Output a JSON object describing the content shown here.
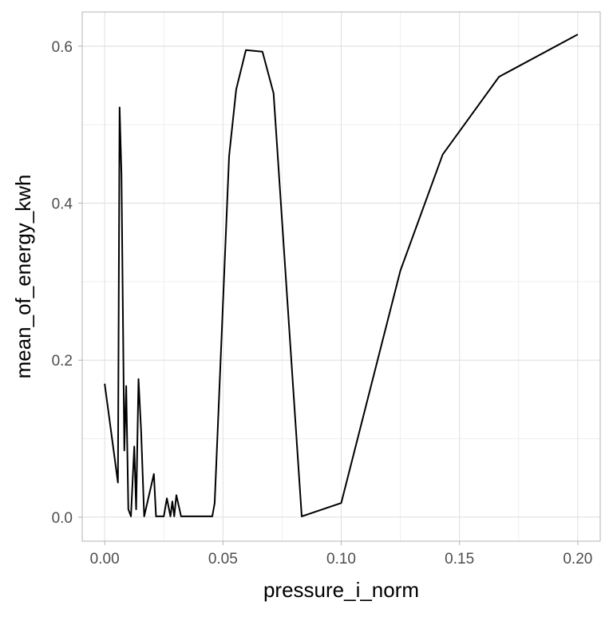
{
  "chart_data": {
    "type": "line",
    "title": "",
    "xlabel": "pressure_i_norm",
    "ylabel": "mean_of_energy_kwh",
    "xlim": [
      -0.0095,
      0.2095
    ],
    "ylim": [
      -0.0306,
      0.6436
    ],
    "xticks": [
      0.0,
      0.05,
      0.1,
      0.15,
      0.2
    ],
    "xtick_labels": [
      "0.00",
      "0.05",
      "0.10",
      "0.15",
      "0.20"
    ],
    "yticks": [
      0.0,
      0.2,
      0.4,
      0.6
    ],
    "ytick_labels": [
      "0.0",
      "0.2",
      "0.4",
      "0.6"
    ],
    "x_minor_ticks": [
      0.025,
      0.075,
      0.125,
      0.175
    ],
    "y_minor_ticks": [
      0.1,
      0.3,
      0.5
    ],
    "grid": true,
    "legend": "none",
    "colors": {
      "line": "#000000",
      "grid_major": "#dedede",
      "grid_minor": "#efefef",
      "panel_border": "#b3b3b3",
      "tick_label": "#4d4d4d"
    },
    "series": [
      {
        "values": [
          [
            0.0,
            0.17
          ],
          [
            0.0056,
            0.044
          ],
          [
            0.0063,
            0.522
          ],
          [
            0.0071,
            0.436
          ],
          [
            0.0083,
            0.085
          ],
          [
            0.0091,
            0.167
          ],
          [
            0.01,
            0.01
          ],
          [
            0.0111,
            0.001
          ],
          [
            0.0125,
            0.09
          ],
          [
            0.0133,
            0.01
          ],
          [
            0.0143,
            0.176
          ],
          [
            0.0154,
            0.11
          ],
          [
            0.0167,
            0.001
          ],
          [
            0.0208,
            0.055
          ],
          [
            0.0217,
            0.001
          ],
          [
            0.025,
            0.001
          ],
          [
            0.0263,
            0.024
          ],
          [
            0.0278,
            0.001
          ],
          [
            0.0286,
            0.02
          ],
          [
            0.0294,
            0.001
          ],
          [
            0.0303,
            0.028
          ],
          [
            0.0323,
            0.001
          ],
          [
            0.0455,
            0.001
          ],
          [
            0.0465,
            0.018
          ],
          [
            0.0526,
            0.46
          ],
          [
            0.0556,
            0.545
          ],
          [
            0.0597,
            0.595
          ],
          [
            0.0667,
            0.593
          ],
          [
            0.0714,
            0.54
          ],
          [
            0.0833,
            0.001
          ],
          [
            0.1,
            0.018
          ],
          [
            0.125,
            0.314
          ],
          [
            0.1429,
            0.462
          ],
          [
            0.1667,
            0.561
          ],
          [
            0.2,
            0.615
          ]
        ]
      }
    ]
  }
}
